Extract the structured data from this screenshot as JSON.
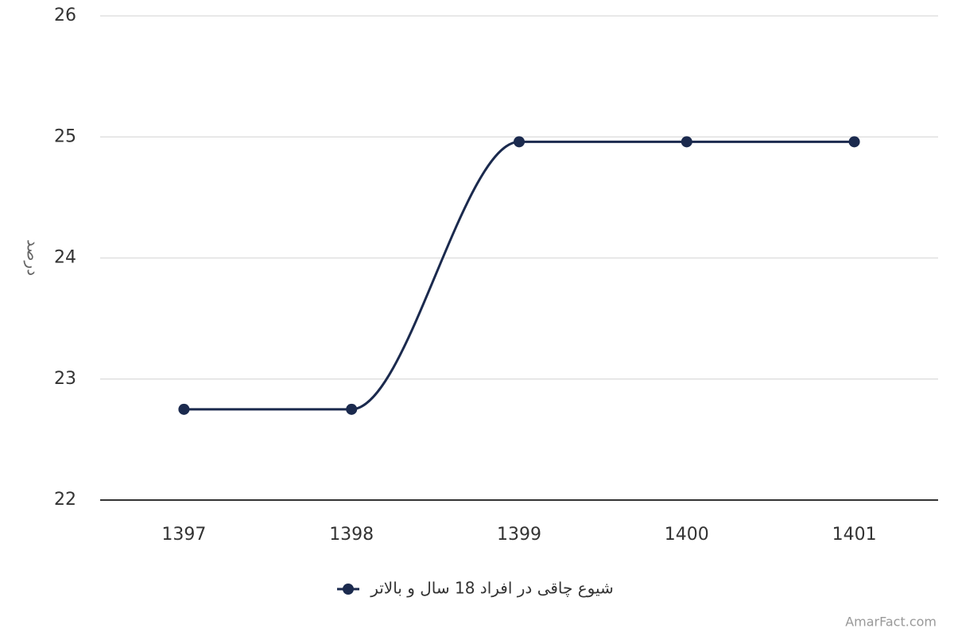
{
  "chart_data": {
    "type": "line",
    "y_label": "درصد",
    "categories": [
      "1397",
      "1398",
      "1399",
      "1400",
      "1401"
    ],
    "series": [
      {
        "name": "شیوع چاقی در افراد 18 سال و بالاتر",
        "color": "#1b2a4e",
        "values": [
          22.75,
          22.75,
          24.96,
          24.96,
          24.96
        ]
      }
    ],
    "ylim": [
      22,
      26
    ],
    "yticks": [
      22,
      23,
      24,
      25,
      26
    ],
    "grid": true,
    "credit": "AmarFact.com"
  }
}
